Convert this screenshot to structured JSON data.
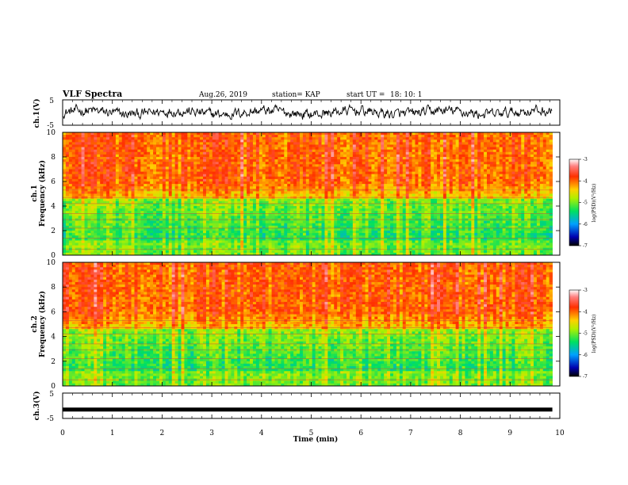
{
  "header": {
    "title": "VLF Spectra",
    "date": "Aug.26, 2019",
    "station": "station= KAP",
    "start": "start UT =",
    "start_time": "18: 10: 1"
  },
  "chart_data": [
    {
      "type": "line",
      "panel": "ch1-waveform",
      "ylabel": "ch.1(V)",
      "ylim": [
        -5,
        5
      ],
      "yticks": [
        "5",
        "-5"
      ],
      "xlim": [
        0,
        10
      ],
      "x_extent_min": 9.85,
      "series_description": "noisy waveform oscillating between about -3 V and +3 V"
    },
    {
      "type": "heatmap",
      "panel": "ch1-spectrogram",
      "ylabel_line1": "ch.1",
      "ylabel_line2": "Frequency (kHz)",
      "ylim": [
        0,
        10
      ],
      "yticks": [
        "0",
        "2",
        "4",
        "6",
        "8",
        "10"
      ],
      "xlim": [
        0,
        10
      ],
      "colorbar": {
        "label": "log(PSD)(V²/Hz)",
        "range": [
          -7,
          -3
        ],
        "ticks": [
          "-3",
          "-4",
          "-5",
          "-6",
          "-7"
        ]
      }
    },
    {
      "type": "heatmap",
      "panel": "ch2-spectrogram",
      "ylabel_line1": "ch.2",
      "ylabel_line2": "Frequency (kHz)",
      "ylim": [
        0,
        10
      ],
      "yticks": [
        "0",
        "2",
        "4",
        "6",
        "8",
        "10"
      ],
      "xlim": [
        0,
        10
      ],
      "colorbar": {
        "label": "log(PSD)(V²/Hz)",
        "range": [
          -7,
          -3
        ],
        "ticks": [
          "-3",
          "-4",
          "-5",
          "-6",
          "-7"
        ]
      }
    },
    {
      "type": "line",
      "panel": "ch3-waveform",
      "ylabel": "ch.3(V)",
      "ylim": [
        -5,
        5
      ],
      "yticks": [
        "5",
        "-5"
      ],
      "xlim": [
        0,
        10
      ],
      "xlabel": "Time (min)",
      "xticks": [
        "0",
        "1",
        "2",
        "3",
        "4",
        "5",
        "6",
        "7",
        "8",
        "9",
        "10"
      ],
      "constant_value": -1.5
    }
  ]
}
